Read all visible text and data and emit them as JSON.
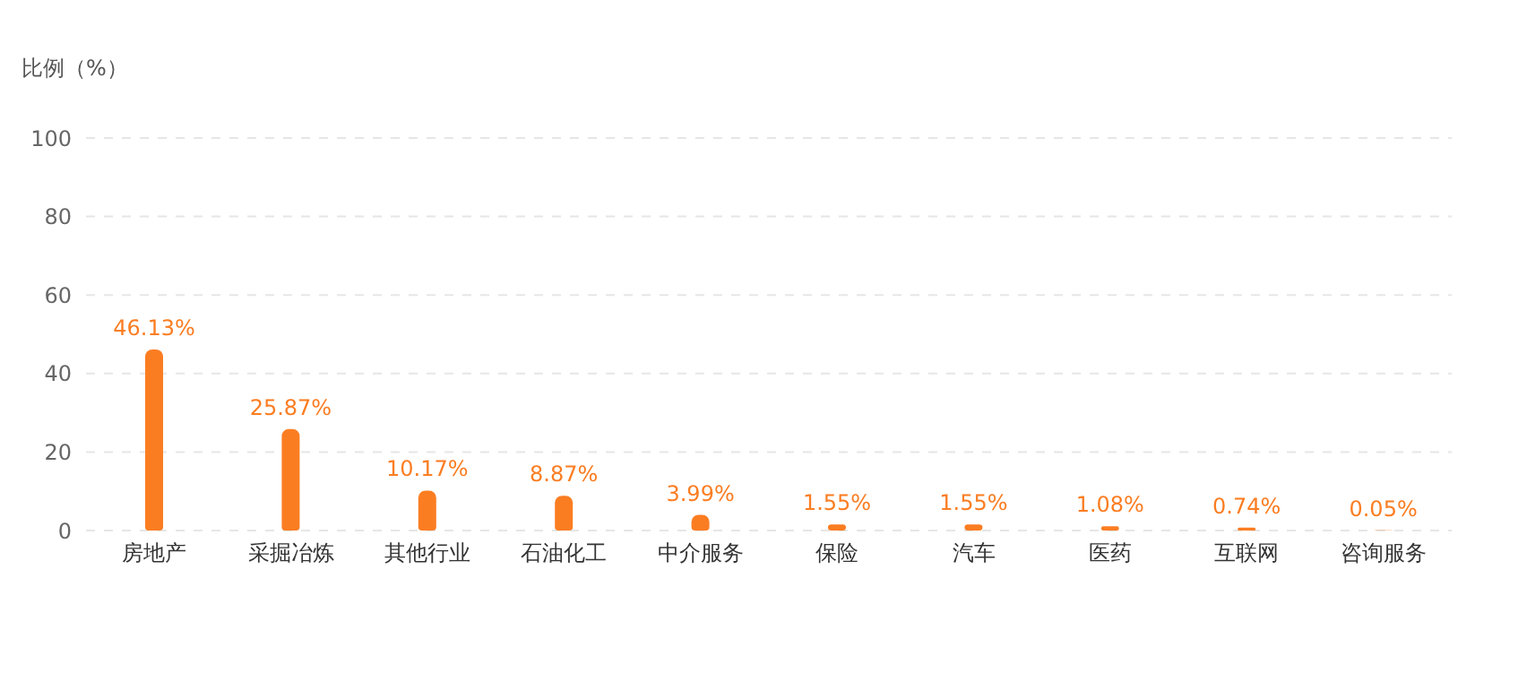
{
  "chart_data": {
    "type": "bar",
    "ylabel": "比例（%）",
    "categories": [
      "房地产",
      "采掘冶炼",
      "其他行业",
      "石油化工",
      "中介服务",
      "保险",
      "汽车",
      "医药",
      "互联网",
      "咨询服务"
    ],
    "values": [
      46.13,
      25.87,
      10.17,
      8.87,
      3.99,
      1.55,
      1.55,
      1.08,
      0.74,
      0.05
    ],
    "value_labels": [
      "46.13%",
      "25.87%",
      "10.17%",
      "8.87%",
      "3.99%",
      "1.55%",
      "1.55%",
      "1.08%",
      "0.74%",
      "0.05%"
    ],
    "color": "#fb7d22",
    "ylim": [
      0,
      100
    ],
    "yticks": [
      0,
      20,
      40,
      60,
      80,
      100
    ],
    "grid": "y"
  }
}
